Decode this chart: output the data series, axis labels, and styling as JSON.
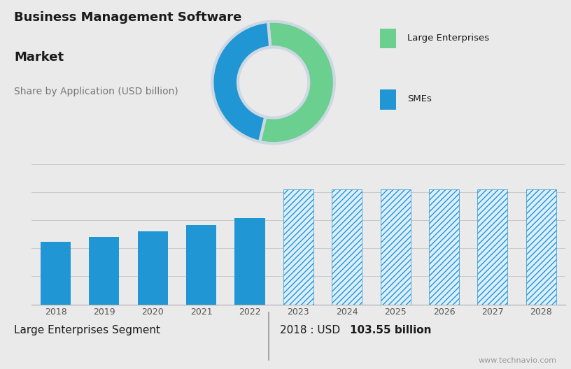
{
  "title_line1": "Business Management Software",
  "title_line2": "Market",
  "subtitle": "Share by Application (USD billion)",
  "pie_values": [
    55,
    45
  ],
  "pie_colors": [
    "#6bcf8f",
    "#2196d4"
  ],
  "pie_startangle": 95,
  "bar_years": [
    "2018",
    "2019",
    "2020",
    "2021",
    "2022",
    "2023",
    "2024",
    "2025",
    "2026",
    "2027",
    "2028"
  ],
  "bar_values": [
    103.55,
    112,
    121,
    131,
    143,
    190,
    190,
    190,
    190,
    190,
    190
  ],
  "bar_solid_color": "#2196d4",
  "bar_hatch_color": "#2196d4",
  "bar_hatch_face": "#ddeeff",
  "hatch_pattern": "////",
  "top_bg_color": "#cdd8e3",
  "bottom_bg_color": "#eaeaea",
  "sep_line_color": "#cccccc",
  "legend_square_colors": [
    "#6bcf8f",
    "#2196d4"
  ],
  "legend_labels": [
    "Large Enterprises",
    "SMEs"
  ],
  "footer_left": "Large Enterprises Segment",
  "footer_mid": "2018 : USD ",
  "footer_bold": "103.55 billion",
  "footer_url": "www.technavio.com",
  "text_color_dark": "#1a1a1a",
  "text_color_gray": "#777777",
  "title_fontsize": 13,
  "subtitle_fontsize": 10
}
